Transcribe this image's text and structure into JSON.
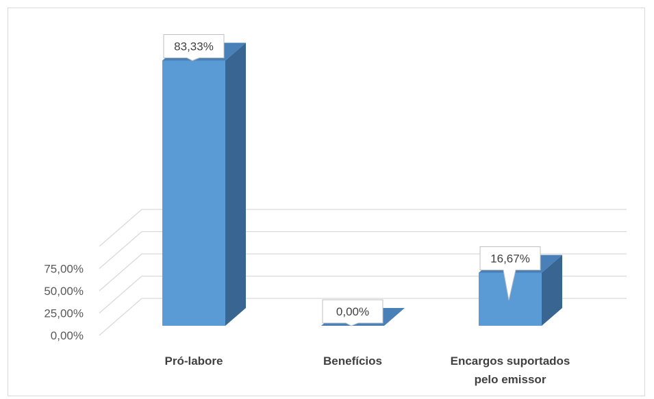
{
  "chart_data": {
    "type": "bar",
    "style": "3d-column",
    "categories": [
      [
        "Pró-labore"
      ],
      [
        "Benefícios"
      ],
      [
        "Encargos suportados",
        "pelo emissor"
      ]
    ],
    "values": [
      83.33,
      0.0,
      16.67
    ],
    "data_labels": [
      "83,33%",
      "0,00%",
      "16,67%"
    ],
    "y_ticks": [
      {
        "value": 0,
        "label": "0,00%"
      },
      {
        "value": 25,
        "label": "25,00%"
      },
      {
        "value": 50,
        "label": "50,00%"
      },
      {
        "value": 75,
        "label": "75,00%"
      }
    ],
    "ylim": [
      0,
      100
    ],
    "grid": true,
    "legend": "none",
    "colors": {
      "bar_front": "#5b9bd5",
      "bar_side": "#386591",
      "bar_top": "#4a80b8",
      "grid": "#d9d9d9",
      "label_box_border": "#bfbfbf"
    }
  }
}
